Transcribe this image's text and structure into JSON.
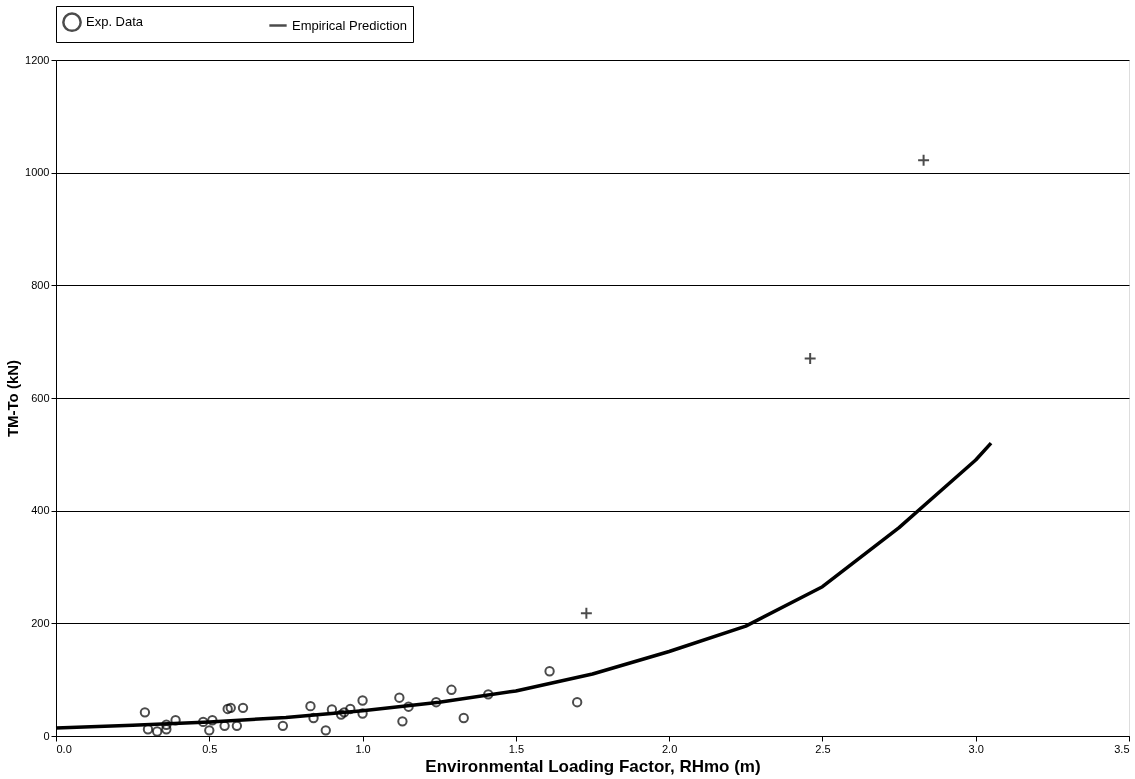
{
  "chart_data": {
    "type": "scatter",
    "xlabel": "Environmental Loading Factor, RHmo (m)",
    "ylabel": "TM-To (kN)",
    "xlim": [
      0,
      3.5
    ],
    "xticks": [
      {
        "value": 0,
        "label": "0.0"
      },
      0.5,
      {
        "value": 1,
        "label": "1.0"
      },
      1.5,
      {
        "value": 2,
        "label": "2.0"
      },
      2.5,
      {
        "value": 3,
        "label": "3.0"
      },
      3.5
    ],
    "ylim": [
      0,
      1200
    ],
    "yticks": [
      0,
      200,
      400,
      600,
      800,
      1000,
      1200
    ],
    "grid": "y",
    "legend": "top",
    "series": [
      {
        "name": "Exp. Data",
        "marker": "circle",
        "color": "#000000",
        "x": [
          0.29,
          0.3,
          0.33,
          0.36,
          0.36,
          0.39,
          0.48,
          0.5,
          0.51,
          0.55,
          0.56,
          0.57,
          0.59,
          0.61,
          0.74,
          0.83,
          0.84,
          0.88,
          0.9,
          0.93,
          0.94,
          0.96,
          1.0,
          1.0,
          1.12,
          1.13,
          1.15,
          1.24,
          1.29,
          1.33,
          1.41,
          1.61,
          1.7
        ],
        "values": [
          42,
          12,
          8,
          12,
          20,
          28,
          25,
          10,
          28,
          18,
          48,
          50,
          18,
          50,
          18,
          53,
          32,
          10,
          47,
          38,
          42,
          48,
          63,
          40,
          68,
          26,
          52,
          60,
          82,
          32,
          74,
          115,
          60
        ]
      },
      {
        "marker": "cross",
        "color": "#000000",
        "x": [
          1.73,
          2.46,
          2.83
        ],
        "values": [
          218,
          670,
          1022
        ]
      },
      {
        "name": "Empirical Prediction",
        "type": "line",
        "marker": "none",
        "line_style": "solid",
        "color": "#000000",
        "x": [
          0,
          0.25,
          0.5,
          0.75,
          1.0,
          1.25,
          1.5,
          1.75,
          2.0,
          2.25,
          2.5,
          2.75,
          3.0,
          3.05
        ],
        "values": [
          14,
          19,
          25,
          33,
          45,
          60,
          80,
          110,
          150,
          195,
          265,
          370,
          490,
          520
        ]
      }
    ]
  }
}
